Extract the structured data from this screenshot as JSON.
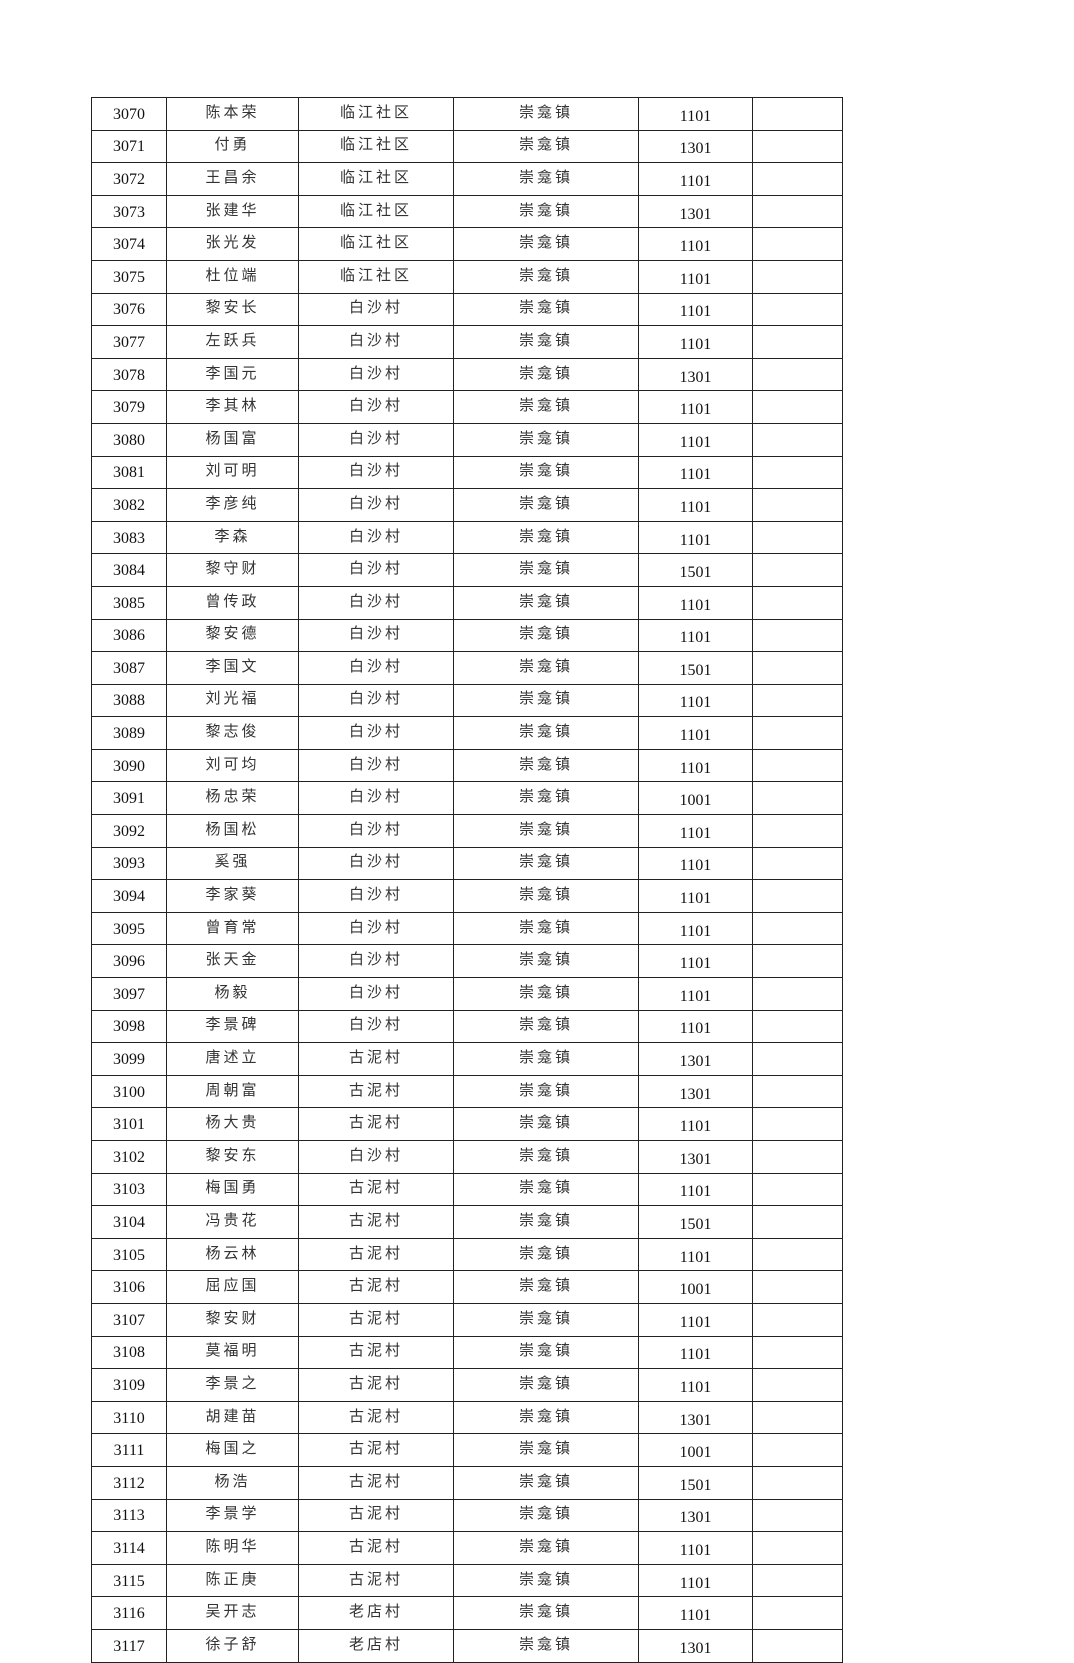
{
  "table": {
    "rows": [
      [
        "3070",
        "陈本荣",
        "临江社区",
        "崇龛镇",
        "1101",
        ""
      ],
      [
        "3071",
        "付勇",
        "临江社区",
        "崇龛镇",
        "1301",
        ""
      ],
      [
        "3072",
        "王昌余",
        "临江社区",
        "崇龛镇",
        "1101",
        ""
      ],
      [
        "3073",
        "张建华",
        "临江社区",
        "崇龛镇",
        "1301",
        ""
      ],
      [
        "3074",
        "张光发",
        "临江社区",
        "崇龛镇",
        "1101",
        ""
      ],
      [
        "3075",
        "杜位端",
        "临江社区",
        "崇龛镇",
        "1101",
        ""
      ],
      [
        "3076",
        "黎安长",
        "白沙村",
        "崇龛镇",
        "1101",
        ""
      ],
      [
        "3077",
        "左跃兵",
        "白沙村",
        "崇龛镇",
        "1101",
        ""
      ],
      [
        "3078",
        "李国元",
        "白沙村",
        "崇龛镇",
        "1301",
        ""
      ],
      [
        "3079",
        "李其林",
        "白沙村",
        "崇龛镇",
        "1101",
        ""
      ],
      [
        "3080",
        "杨国富",
        "白沙村",
        "崇龛镇",
        "1101",
        ""
      ],
      [
        "3081",
        "刘可明",
        "白沙村",
        "崇龛镇",
        "1101",
        ""
      ],
      [
        "3082",
        "李彦纯",
        "白沙村",
        "崇龛镇",
        "1101",
        ""
      ],
      [
        "3083",
        "李森",
        "白沙村",
        "崇龛镇",
        "1101",
        ""
      ],
      [
        "3084",
        "黎守财",
        "白沙村",
        "崇龛镇",
        "1501",
        ""
      ],
      [
        "3085",
        "曾传政",
        "白沙村",
        "崇龛镇",
        "1101",
        ""
      ],
      [
        "3086",
        "黎安德",
        "白沙村",
        "崇龛镇",
        "1101",
        ""
      ],
      [
        "3087",
        "李国文",
        "白沙村",
        "崇龛镇",
        "1501",
        ""
      ],
      [
        "3088",
        "刘光福",
        "白沙村",
        "崇龛镇",
        "1101",
        ""
      ],
      [
        "3089",
        "黎志俊",
        "白沙村",
        "崇龛镇",
        "1101",
        ""
      ],
      [
        "3090",
        "刘可均",
        "白沙村",
        "崇龛镇",
        "1101",
        ""
      ],
      [
        "3091",
        "杨忠荣",
        "白沙村",
        "崇龛镇",
        "1001",
        ""
      ],
      [
        "3092",
        "杨国松",
        "白沙村",
        "崇龛镇",
        "1101",
        ""
      ],
      [
        "3093",
        "奚强",
        "白沙村",
        "崇龛镇",
        "1101",
        ""
      ],
      [
        "3094",
        "李家葵",
        "白沙村",
        "崇龛镇",
        "1101",
        ""
      ],
      [
        "3095",
        "曾育常",
        "白沙村",
        "崇龛镇",
        "1101",
        ""
      ],
      [
        "3096",
        "张天金",
        "白沙村",
        "崇龛镇",
        "1101",
        ""
      ],
      [
        "3097",
        "杨毅",
        "白沙村",
        "崇龛镇",
        "1101",
        ""
      ],
      [
        "3098",
        "李景碑",
        "白沙村",
        "崇龛镇",
        "1101",
        ""
      ],
      [
        "3099",
        "唐述立",
        "古泥村",
        "崇龛镇",
        "1301",
        ""
      ],
      [
        "3100",
        "周朝富",
        "古泥村",
        "崇龛镇",
        "1301",
        ""
      ],
      [
        "3101",
        "杨大贵",
        "古泥村",
        "崇龛镇",
        "1101",
        ""
      ],
      [
        "3102",
        "黎安东",
        "白沙村",
        "崇龛镇",
        "1301",
        ""
      ],
      [
        "3103",
        "梅国勇",
        "古泥村",
        "崇龛镇",
        "1101",
        ""
      ],
      [
        "3104",
        "冯贵花",
        "古泥村",
        "崇龛镇",
        "1501",
        ""
      ],
      [
        "3105",
        "杨云林",
        "古泥村",
        "崇龛镇",
        "1101",
        ""
      ],
      [
        "3106",
        "屈应国",
        "古泥村",
        "崇龛镇",
        "1001",
        ""
      ],
      [
        "3107",
        "黎安财",
        "古泥村",
        "崇龛镇",
        "1101",
        ""
      ],
      [
        "3108",
        "莫福明",
        "古泥村",
        "崇龛镇",
        "1101",
        ""
      ],
      [
        "3109",
        "李景之",
        "古泥村",
        "崇龛镇",
        "1101",
        ""
      ],
      [
        "3110",
        "胡建苗",
        "古泥村",
        "崇龛镇",
        "1301",
        ""
      ],
      [
        "3111",
        "梅国之",
        "古泥村",
        "崇龛镇",
        "1001",
        ""
      ],
      [
        "3112",
        "杨浩",
        "古泥村",
        "崇龛镇",
        "1501",
        ""
      ],
      [
        "3113",
        "李景学",
        "古泥村",
        "崇龛镇",
        "1301",
        ""
      ],
      [
        "3114",
        "陈明华",
        "古泥村",
        "崇龛镇",
        "1101",
        ""
      ],
      [
        "3115",
        "陈正庚",
        "古泥村",
        "崇龛镇",
        "1101",
        ""
      ],
      [
        "3116",
        "吴开志",
        "老店村",
        "崇龛镇",
        "1101",
        ""
      ],
      [
        "3117",
        "徐子舒",
        "老店村",
        "崇龛镇",
        "1301",
        ""
      ]
    ]
  }
}
